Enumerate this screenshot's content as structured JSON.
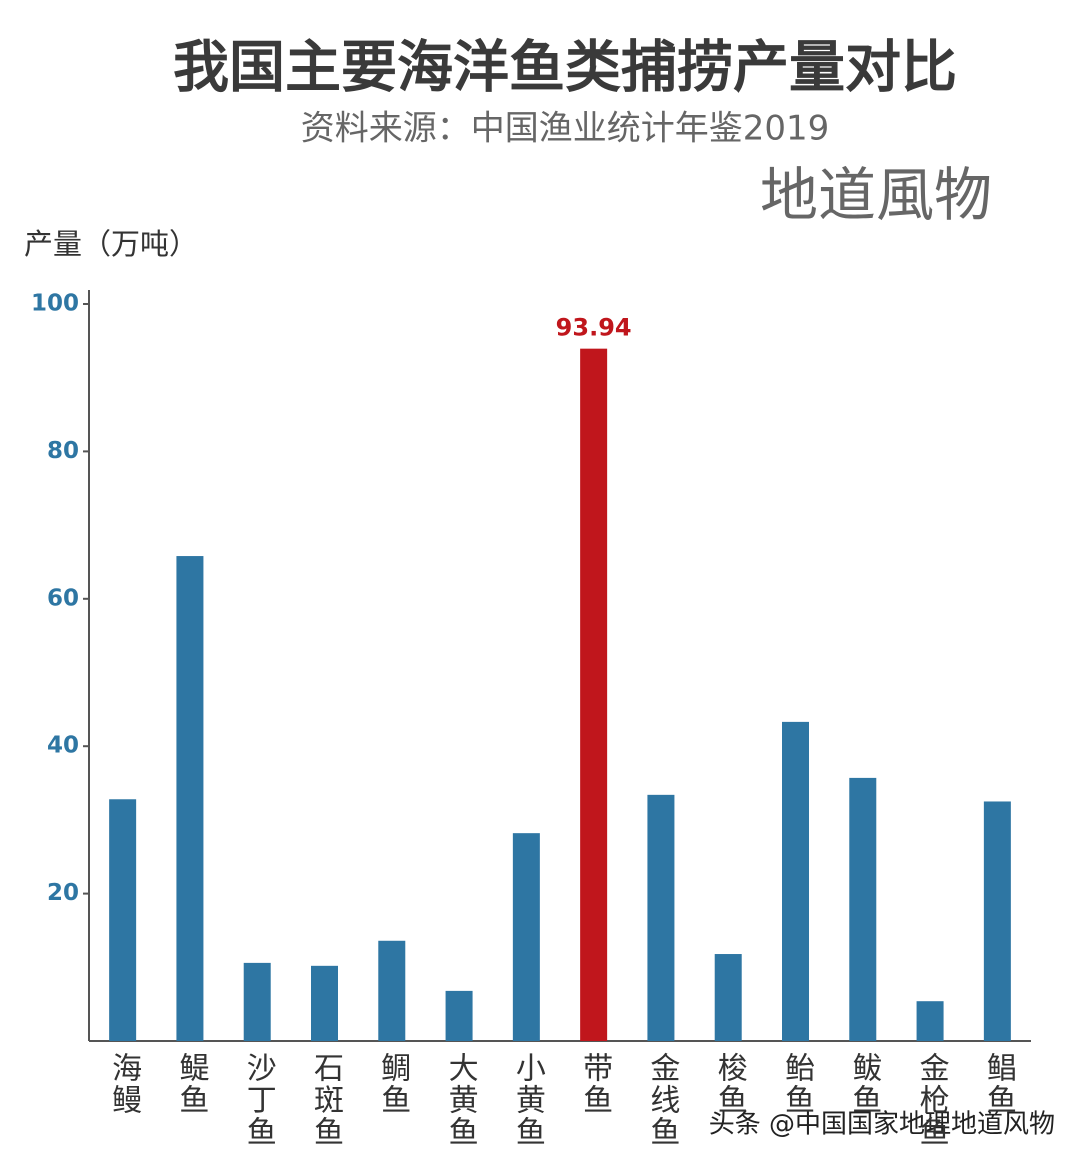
{
  "chart_data": {
    "type": "bar",
    "title": "我国主要海洋鱼类捕捞产量对比",
    "subtitle": "资料来源：中国渔业统计年鉴2019",
    "watermark": "地道風物",
    "y_label": "产量（万吨）",
    "footer": "头条 @中国国家地理地道风物",
    "categories": [
      "海鳗",
      "鳀鱼",
      "沙丁鱼",
      "石斑鱼",
      "鲷鱼",
      "大黄鱼",
      "小黄鱼",
      "带鱼",
      "金线鱼",
      "梭鱼",
      "鲐鱼",
      "鲅鱼",
      "金枪鱼",
      "鲳鱼"
    ],
    "values": [
      32.8,
      65.8,
      10.6,
      10.2,
      13.6,
      6.8,
      28.2,
      93.94,
      33.4,
      11.8,
      43.3,
      35.7,
      5.4,
      32.5
    ],
    "value_labels": [
      null,
      null,
      null,
      null,
      null,
      null,
      null,
      "93.94",
      null,
      null,
      null,
      null,
      null,
      null
    ],
    "colors": [
      "#2e76a3",
      "#2e76a3",
      "#2e76a3",
      "#2e76a3",
      "#2e76a3",
      "#2e76a3",
      "#2e76a3",
      "#c0161c",
      "#2e76a3",
      "#2e76a3",
      "#2e76a3",
      "#2e76a3",
      "#2e76a3",
      "#2e76a3"
    ],
    "ylim": [
      0,
      100
    ],
    "yticks": [
      20,
      40,
      60,
      80,
      100
    ],
    "grid": false
  }
}
